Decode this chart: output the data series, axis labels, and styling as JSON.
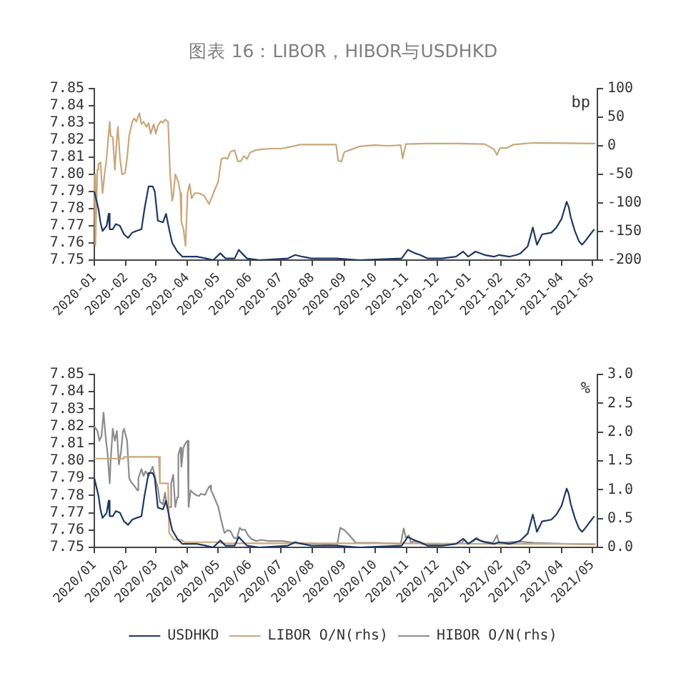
{
  "chart_data": [
    {
      "type": "line",
      "title": "图表 16：LIBOR，HIBOR与USDHKD",
      "y2label": "bp",
      "xlim": [
        "2020-01-01",
        "2021-05-06"
      ],
      "xticks": [
        "2020-01",
        "2020-02",
        "2020-03",
        "2020-04",
        "2020-05",
        "2020-06",
        "2020-07",
        "2020-08",
        "2020-09",
        "2020-10",
        "2020-11",
        "2020-12",
        "2021-01",
        "2021-02",
        "2021-03",
        "2021-04",
        "2021-05"
      ],
      "ylim": [
        7.75,
        7.85
      ],
      "yticks": [
        7.75,
        7.76,
        7.77,
        7.78,
        7.79,
        {
          "value": 7.8,
          "label": "7.80"
        },
        7.81,
        7.82,
        7.83,
        7.84,
        7.85
      ],
      "y2lim": [
        -200,
        100
      ],
      "y2ticks": [
        -200,
        -150,
        -100,
        -50,
        0,
        50,
        100
      ],
      "series": [
        {
          "color": "#1f3864",
          "x": [
            "2020-01-01",
            "2020-01-05",
            "2020-01-07",
            "2020-01-09",
            "2020-01-13",
            "2020-01-15",
            "2020-01-16",
            "2020-01-19",
            "2020-01-22",
            "2020-01-26",
            "2020-01-30",
            "2020-02-03",
            "2020-02-07",
            "2020-02-11",
            "2020-02-16",
            "2020-02-19",
            "2020-02-23",
            "2020-02-27",
            "2020-02-29",
            "2020-03-03",
            "2020-03-08",
            "2020-03-11",
            "2020-03-14",
            "2020-03-17",
            "2020-03-22",
            "2020-03-27",
            "2020-04-10",
            "2020-04-19",
            "2020-04-26",
            "2020-05-03",
            "2020-05-08",
            "2020-05-17",
            "2020-05-21",
            "2020-05-24",
            "2020-05-29",
            "2020-06-10",
            "2020-07-08",
            "2020-07-15",
            "2020-07-22",
            "2020-07-31",
            "2020-08-24",
            "2020-09-16",
            "2020-10-27",
            "2020-11-02",
            "2020-11-09",
            "2020-11-14",
            "2020-11-21",
            "2020-12-05",
            "2020-12-19",
            "2020-12-26",
            "2020-12-31",
            "2021-01-07",
            "2021-01-16",
            "2021-01-25",
            "2021-01-30",
            "2021-02-09",
            "2021-02-16",
            "2021-02-20",
            "2021-02-27",
            "2021-03-04",
            "2021-03-08",
            "2021-03-13",
            "2021-03-22",
            "2021-03-27",
            "2021-04-01",
            "2021-04-03",
            "2021-04-06",
            "2021-04-08",
            "2021-04-10",
            "2021-04-12",
            "2021-04-14",
            "2021-04-18",
            "2021-04-21",
            "2021-04-24",
            "2021-04-29",
            "2021-05-03"
          ],
          "values": [
            7.79,
            7.78,
            7.772,
            7.767,
            7.77,
            7.777,
            7.768,
            7.768,
            7.771,
            7.77,
            7.765,
            7.763,
            7.766,
            7.767,
            7.768,
            7.78,
            7.793,
            7.793,
            7.79,
            7.773,
            7.772,
            7.777,
            7.768,
            7.76,
            7.755,
            7.752,
            7.752,
            7.751,
            7.75,
            7.754,
            7.751,
            7.751,
            7.756,
            7.754,
            7.751,
            7.75,
            7.751,
            7.753,
            7.752,
            7.751,
            7.751,
            7.75,
            7.751,
            7.756,
            7.754,
            7.753,
            7.751,
            7.751,
            7.752,
            7.755,
            7.752,
            7.755,
            7.753,
            7.752,
            7.753,
            7.752,
            7.753,
            7.754,
            7.758,
            7.769,
            7.759,
            7.765,
            7.766,
            7.769,
            7.774,
            7.778,
            7.784,
            7.781,
            7.775,
            7.771,
            7.767,
            7.761,
            7.759,
            7.761,
            7.765,
            7.768
          ]
        },
        {
          "color": "#c9a77c",
          "axis": "y2",
          "x": [
            "2020-01-01",
            "2020-01-02",
            "2020-01-04",
            "2020-01-05",
            "2020-01-07",
            "2020-01-09",
            "2020-01-11",
            "2020-01-13",
            "2020-01-16",
            "2020-01-17",
            "2020-01-19",
            "2020-01-21",
            "2020-01-23",
            "2020-01-24",
            "2020-01-26",
            "2020-01-28",
            "2020-01-31",
            "2020-02-02",
            "2020-02-04",
            "2020-02-07",
            "2020-02-09",
            "2020-02-11",
            "2020-02-14",
            "2020-02-16",
            "2020-02-18",
            "2020-02-21",
            "2020-02-23",
            "2020-02-25",
            "2020-02-28",
            "2020-03-01",
            "2020-03-03",
            "2020-03-06",
            "2020-03-08",
            "2020-03-10",
            "2020-03-13",
            "2020-03-15",
            "2020-03-17",
            "2020-03-18",
            "2020-03-20",
            "2020-03-23",
            "2020-03-25",
            "2020-03-26",
            "2020-03-28",
            "2020-03-30",
            "2020-04-01",
            "2020-04-03",
            "2020-04-05",
            "2020-04-08",
            "2020-04-12",
            "2020-04-17",
            "2020-04-20",
            "2020-04-22",
            "2020-04-24",
            "2020-04-28",
            "2020-05-01",
            "2020-05-04",
            "2020-05-07",
            "2020-05-10",
            "2020-05-13",
            "2020-05-17",
            "2020-05-20",
            "2020-05-23",
            "2020-05-26",
            "2020-05-29",
            "2020-06-01",
            "2020-06-06",
            "2020-06-12",
            "2020-06-22",
            "2020-07-01",
            "2020-07-10",
            "2020-07-20",
            "2020-08-05",
            "2020-08-24",
            "2020-08-26",
            "2020-08-29",
            "2020-09-01",
            "2020-09-07",
            "2020-09-16",
            "2020-09-30",
            "2020-10-14",
            "2020-10-26",
            "2020-10-28",
            "2020-10-31",
            "2020-11-21",
            "2020-12-19",
            "2021-01-16",
            "2021-01-25",
            "2021-01-28",
            "2021-01-31",
            "2021-02-06",
            "2021-02-13",
            "2021-03-04",
            "2021-05-04"
          ],
          "values": [
            -50,
            -175,
            -42,
            -32,
            -29,
            -83,
            -50,
            -21,
            42,
            17,
            15,
            -42,
            13,
            33,
            -21,
            -50,
            -48,
            -21,
            17,
            42,
            48,
            42,
            57,
            38,
            42,
            33,
            40,
            21,
            38,
            21,
            35,
            43,
            40,
            46,
            42,
            -50,
            -96,
            -88,
            -50,
            -63,
            -83,
            -133,
            -146,
            -175,
            -83,
            -67,
            -92,
            -83,
            -83,
            -87,
            -96,
            -102,
            -93,
            -75,
            -62,
            -23,
            -21,
            -23,
            -10,
            -8,
            -27,
            -27,
            -18,
            -23,
            -12,
            -8,
            -6,
            -5,
            -5,
            -2,
            2,
            2,
            2,
            -26,
            -28,
            -11,
            -7,
            -1,
            1,
            0,
            1,
            -22,
            3,
            4,
            4,
            3,
            -6,
            -16,
            -4,
            -4,
            2,
            5,
            4
          ]
        }
      ]
    },
    {
      "type": "line",
      "y2label": "%",
      "legend": "bottom",
      "xlim": [
        "2020-01-01",
        "2021-05-06"
      ],
      "xticks": [
        {
          "value": "2020-01",
          "label": "2020/01"
        },
        {
          "value": "2020-02",
          "label": "2020/02"
        },
        {
          "value": "2020-03",
          "label": "2020/03"
        },
        {
          "value": "2020-04",
          "label": "2020/04"
        },
        {
          "value": "2020-05",
          "label": "2020/05"
        },
        {
          "value": "2020-06",
          "label": "2020/06"
        },
        {
          "value": "2020-07",
          "label": "2020/07"
        },
        {
          "value": "2020-08",
          "label": "2020/08"
        },
        {
          "value": "2020-09",
          "label": "2020/09"
        },
        {
          "value": "2020-10",
          "label": "2020/10"
        },
        {
          "value": "2020-11",
          "label": "2020/11"
        },
        {
          "value": "2020-12",
          "label": "2020/12"
        },
        {
          "value": "2021-01",
          "label": "2021/01"
        },
        {
          "value": "2021-02",
          "label": "2021/02"
        },
        {
          "value": "2021-03",
          "label": "2021/03"
        },
        {
          "value": "2021-04",
          "label": "2021/04"
        },
        {
          "value": "2021-05",
          "label": "2021/05"
        }
      ],
      "ylim": [
        7.75,
        7.85
      ],
      "yticks": [
        7.75,
        7.76,
        7.77,
        7.78,
        7.79,
        {
          "value": 7.8,
          "label": "7.80"
        },
        7.81,
        7.82,
        7.83,
        7.84,
        7.85
      ],
      "y2lim": [
        0,
        3
      ],
      "y2ticks": [
        {
          "value": 0,
          "label": "0.0"
        },
        0.5,
        {
          "value": 1,
          "label": "1.0"
        },
        1.5,
        {
          "value": 2,
          "label": "2.0"
        },
        2.5,
        {
          "value": 3,
          "label": "3.0"
        }
      ],
      "series": [
        {
          "name": "USDHKD",
          "color": "#1f3864",
          "x": [
            "2020-01-01",
            "2020-01-05",
            "2020-01-07",
            "2020-01-09",
            "2020-01-13",
            "2020-01-15",
            "2020-01-16",
            "2020-01-19",
            "2020-01-22",
            "2020-01-26",
            "2020-01-30",
            "2020-02-03",
            "2020-02-07",
            "2020-02-11",
            "2020-02-16",
            "2020-02-19",
            "2020-02-23",
            "2020-02-27",
            "2020-02-29",
            "2020-03-03",
            "2020-03-08",
            "2020-03-11",
            "2020-03-14",
            "2020-03-17",
            "2020-03-22",
            "2020-03-27",
            "2020-04-10",
            "2020-04-19",
            "2020-04-26",
            "2020-05-03",
            "2020-05-08",
            "2020-05-17",
            "2020-05-21",
            "2020-05-24",
            "2020-05-29",
            "2020-06-10",
            "2020-07-08",
            "2020-07-15",
            "2020-07-22",
            "2020-07-31",
            "2020-08-24",
            "2020-09-16",
            "2020-10-27",
            "2020-11-02",
            "2020-11-09",
            "2020-11-14",
            "2020-11-21",
            "2020-12-05",
            "2020-12-19",
            "2020-12-26",
            "2020-12-31",
            "2021-01-07",
            "2021-01-16",
            "2021-01-25",
            "2021-01-30",
            "2021-02-09",
            "2021-02-16",
            "2021-02-20",
            "2021-02-27",
            "2021-03-04",
            "2021-03-08",
            "2021-03-13",
            "2021-03-22",
            "2021-03-27",
            "2021-04-01",
            "2021-04-03",
            "2021-04-06",
            "2021-04-08",
            "2021-04-10",
            "2021-04-12",
            "2021-04-14",
            "2021-04-18",
            "2021-04-21",
            "2021-04-24",
            "2021-04-29",
            "2021-05-03"
          ],
          "values": [
            7.79,
            7.78,
            7.772,
            7.767,
            7.77,
            7.777,
            7.768,
            7.768,
            7.771,
            7.77,
            7.765,
            7.763,
            7.766,
            7.767,
            7.768,
            7.78,
            7.793,
            7.793,
            7.79,
            7.773,
            7.772,
            7.777,
            7.768,
            7.76,
            7.755,
            7.752,
            7.752,
            7.751,
            7.75,
            7.754,
            7.751,
            7.751,
            7.756,
            7.754,
            7.751,
            7.75,
            7.751,
            7.753,
            7.752,
            7.751,
            7.751,
            7.75,
            7.751,
            7.756,
            7.754,
            7.753,
            7.751,
            7.751,
            7.752,
            7.755,
            7.752,
            7.755,
            7.753,
            7.752,
            7.753,
            7.752,
            7.753,
            7.754,
            7.758,
            7.769,
            7.759,
            7.765,
            7.766,
            7.769,
            7.774,
            7.778,
            7.784,
            7.781,
            7.775,
            7.771,
            7.767,
            7.761,
            7.759,
            7.761,
            7.765,
            7.768
          ]
        },
        {
          "name": "LIBOR O/N(rhs)",
          "color": "#c9a77c",
          "axis": "y2",
          "x": [
            "2020-01-01",
            "2020-01-29",
            "2020-01-30",
            "2020-03-04",
            "2020-03-05",
            "2020-03-13",
            "2020-03-14",
            "2020-03-16",
            "2020-03-19",
            "2020-03-26",
            "2020-03-29",
            "2020-05-03",
            "2020-05-04",
            "2020-10-27",
            "2021-02-04",
            "2021-05-04"
          ],
          "values": [
            1.54,
            1.54,
            1.57,
            1.57,
            1.11,
            1.11,
            0.25,
            0.2,
            0.13,
            0.13,
            0.09,
            0.09,
            0.07,
            0.07,
            0.06,
            0.06
          ]
        },
        {
          "name": "HIBOR O/N(rhs)",
          "color": "#8c8c8c",
          "axis": "y2",
          "x": [
            "2020-01-01",
            "2020-01-04",
            "2020-01-06",
            "2020-01-08",
            "2020-01-10",
            "2020-01-12",
            "2020-01-14",
            "2020-01-16",
            "2020-01-17",
            "2020-01-19",
            "2020-01-21",
            "2020-01-23",
            "2020-01-25",
            "2020-01-27",
            "2020-01-29",
            "2020-01-30",
            "2020-02-02",
            "2020-02-04",
            "2020-02-06",
            "2020-02-09",
            "2020-02-12",
            "2020-02-13",
            "2020-02-16",
            "2020-02-18",
            "2020-02-20",
            "2020-02-23",
            "2020-02-25",
            "2020-02-27",
            "2020-03-01",
            "2020-03-03",
            "2020-03-05",
            "2020-03-08",
            "2020-03-10",
            "2020-03-12",
            "2020-03-15",
            "2020-03-16",
            "2020-03-18",
            "2020-03-20",
            "2020-03-22",
            "2020-03-23",
            "2020-03-25",
            "2020-03-26",
            "2020-03-28",
            "2020-03-30",
            "2020-04-01",
            "2020-04-02",
            "2020-04-04",
            "2020-04-06",
            "2020-04-09",
            "2020-04-12",
            "2020-04-14",
            "2020-04-18",
            "2020-04-21",
            "2020-04-23",
            "2020-04-24",
            "2020-04-27",
            "2020-05-01",
            "2020-05-04",
            "2020-05-07",
            "2020-05-10",
            "2020-05-13",
            "2020-05-16",
            "2020-05-19",
            "2020-05-22",
            "2020-05-24",
            "2020-05-27",
            "2020-05-30",
            "2020-06-02",
            "2020-06-07",
            "2020-06-12",
            "2020-06-19",
            "2020-07-03",
            "2020-07-17",
            "2020-07-31",
            "2020-08-14",
            "2020-08-25",
            "2020-08-28",
            "2020-09-01",
            "2020-09-06",
            "2020-09-12",
            "2020-10-02",
            "2020-10-26",
            "2020-10-29",
            "2020-10-31",
            "2020-11-03",
            "2020-11-05",
            "2020-11-08",
            "2020-11-16",
            "2020-12-07",
            "2020-12-25",
            "2020-12-27",
            "2020-12-31",
            "2021-01-06",
            "2021-01-08",
            "2021-01-12",
            "2021-01-24",
            "2021-01-28",
            "2021-01-30",
            "2021-02-19",
            "2021-03-05",
            "2021-04-06",
            "2021-05-04"
          ],
          "values": [
            2.1,
            2.02,
            1.85,
            1.93,
            2.34,
            1.93,
            1.61,
            1.11,
            1.52,
            2.06,
            1.85,
            2.02,
            1.44,
            1.65,
            2.02,
            2.06,
            1.85,
            1.2,
            1.13,
            1.07,
            0.99,
            1.2,
            1.36,
            1.24,
            1.32,
            1.24,
            1.32,
            1.4,
            1.16,
            1.03,
            0.79,
            0.75,
            0.95,
            0.7,
            0.7,
            1.11,
            1.26,
            0.7,
            0.87,
            1.61,
            1.73,
            1.4,
            1.73,
            1.81,
            1.85,
            0.7,
            0.99,
            0.95,
            0.91,
            0.89,
            0.93,
            0.91,
            1.02,
            1.07,
            0.99,
            0.87,
            0.7,
            0.46,
            0.25,
            0.3,
            0.28,
            0.17,
            0.15,
            0.34,
            0.3,
            0.31,
            0.21,
            0.15,
            0.11,
            0.13,
            0.11,
            0.11,
            0.07,
            0.07,
            0.05,
            0.04,
            0.34,
            0.3,
            0.21,
            0.08,
            0.08,
            0.06,
            0.33,
            0.17,
            0.21,
            0.08,
            0.11,
            0.06,
            0.04,
            0.08,
            0.14,
            0.06,
            0.12,
            0.17,
            0.11,
            0.08,
            0.21,
            0.08,
            0.1,
            0.08,
            0.06,
            0.05
          ]
        }
      ]
    }
  ]
}
